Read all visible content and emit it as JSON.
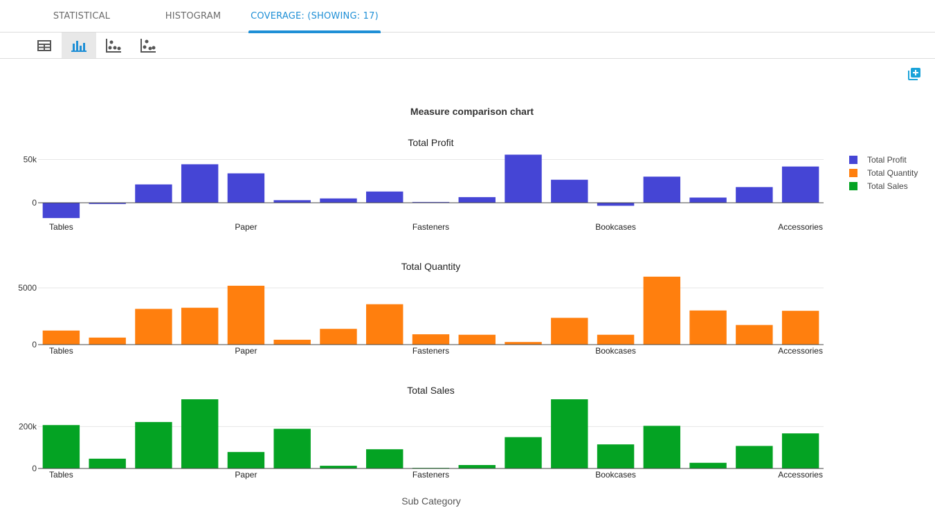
{
  "tabs": [
    {
      "label": "STATISTICAL",
      "active": false
    },
    {
      "label": "HISTOGRAM",
      "active": false
    },
    {
      "label": "COVERAGE: (SHOWING: 17)",
      "active": true
    }
  ],
  "toolbar": {
    "icons": [
      "table-icon",
      "bar-chart-icon",
      "scatter-plot-icon",
      "scatter-plot-alt-icon"
    ],
    "active_index": 1
  },
  "colors": {
    "accent": "#1e8fd6",
    "profit": "#4545d5",
    "quantity": "#ff7f0e",
    "sales": "#04a323"
  },
  "chart_data": {
    "type": "bar",
    "title": "Measure comparison chart",
    "xlabel": "Sub Category",
    "legend_position": "top-right",
    "categories": [
      "Tables",
      "",
      "",
      "",
      "Paper",
      "",
      "",
      "",
      "Fasteners",
      "",
      "",
      "",
      "Bookcases",
      "",
      "",
      "",
      "Accessories"
    ],
    "tick_labels": [
      "Tables",
      "Paper",
      "Fasteners",
      "Bookcases",
      "Accessories"
    ],
    "series": [
      {
        "name": "Total Profit",
        "color": "#4545d5",
        "values": [
          -17700,
          -1400,
          21200,
          44500,
          34000,
          3000,
          5000,
          13000,
          900,
          6500,
          55600,
          26600,
          -3500,
          30200,
          6000,
          18100,
          41900
        ],
        "ylim": [
          -20000,
          60000
        ],
        "ticks": [
          {
            "value": 0,
            "label": "0"
          },
          {
            "value": 50000,
            "label": "50k"
          }
        ]
      },
      {
        "name": "Total Quantity",
        "color": "#ff7f0e",
        "values": [
          1240,
          620,
          3150,
          3250,
          5190,
          430,
          1390,
          3560,
          910,
          870,
          230,
          2360,
          870,
          5990,
          3010,
          1730,
          2980
        ],
        "ylim": [
          0,
          6100
        ],
        "ticks": [
          {
            "value": 0,
            "label": "0"
          },
          {
            "value": 5000,
            "label": "5000"
          }
        ]
      },
      {
        "name": "Total Sales",
        "color": "#04a323",
        "values": [
          207000,
          46700,
          221600,
          330000,
          78500,
          189200,
          13000,
          91700,
          3000,
          16500,
          149500,
          330000,
          114900,
          203400,
          27100,
          107500,
          167400
        ],
        "ylim": [
          0,
          330000
        ],
        "ticks": [
          {
            "value": 0,
            "label": "0"
          },
          {
            "value": 200000,
            "label": "200k"
          }
        ]
      }
    ]
  }
}
